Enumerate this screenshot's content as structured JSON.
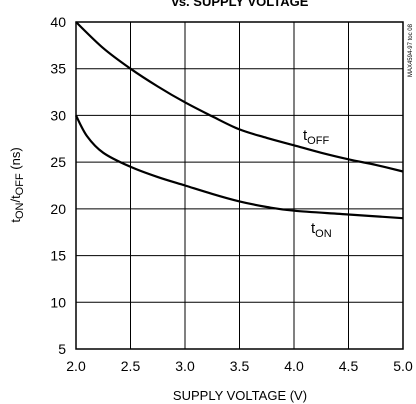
{
  "chart_data": {
    "type": "line",
    "title": "vs. SUPPLY VOLTAGE",
    "xlabel": "SUPPLY VOLTAGE (V)",
    "ylabel": {
      "prefix": "t",
      "sub1": "ON",
      "mid": "/t",
      "sub2": "OFF",
      "suffix": " (ns)"
    },
    "xlim": [
      2.0,
      5.0
    ],
    "ylim": [
      5,
      40
    ],
    "x_ticks": [
      2.0,
      2.5,
      3.0,
      3.5,
      4.0,
      4.5,
      5.0
    ],
    "x_tick_labels": [
      "2.0",
      "2.5",
      "3.0",
      "3.5",
      "4.0",
      "4.5",
      "5.0"
    ],
    "y_ticks": [
      5,
      10,
      15,
      20,
      25,
      30,
      35,
      40
    ],
    "y_tick_labels": [
      "5",
      "10",
      "15",
      "20",
      "25",
      "30",
      "35",
      "40"
    ],
    "grid": true,
    "watermark": "MAX4594-97 toc 08",
    "series": [
      {
        "name": "tOFF",
        "label": {
          "main": "t",
          "sub": "OFF"
        },
        "x": [
          2.0,
          2.25,
          2.5,
          2.75,
          3.0,
          3.25,
          3.5,
          3.75,
          4.0,
          4.25,
          4.5,
          4.75,
          5.0
        ],
        "y": [
          40.0,
          37.2,
          35.0,
          33.1,
          31.4,
          29.9,
          28.5,
          27.6,
          26.8,
          26.0,
          25.3,
          24.7,
          24.0
        ]
      },
      {
        "name": "tON",
        "label": {
          "main": "t",
          "sub": "ON"
        },
        "x": [
          2.0,
          2.1,
          2.25,
          2.5,
          2.75,
          3.0,
          3.25,
          3.5,
          3.75,
          4.0,
          4.5,
          5.0
        ],
        "y": [
          30.0,
          27.8,
          26.0,
          24.5,
          23.4,
          22.5,
          21.6,
          20.8,
          20.2,
          19.8,
          19.4,
          19.0
        ]
      }
    ]
  }
}
